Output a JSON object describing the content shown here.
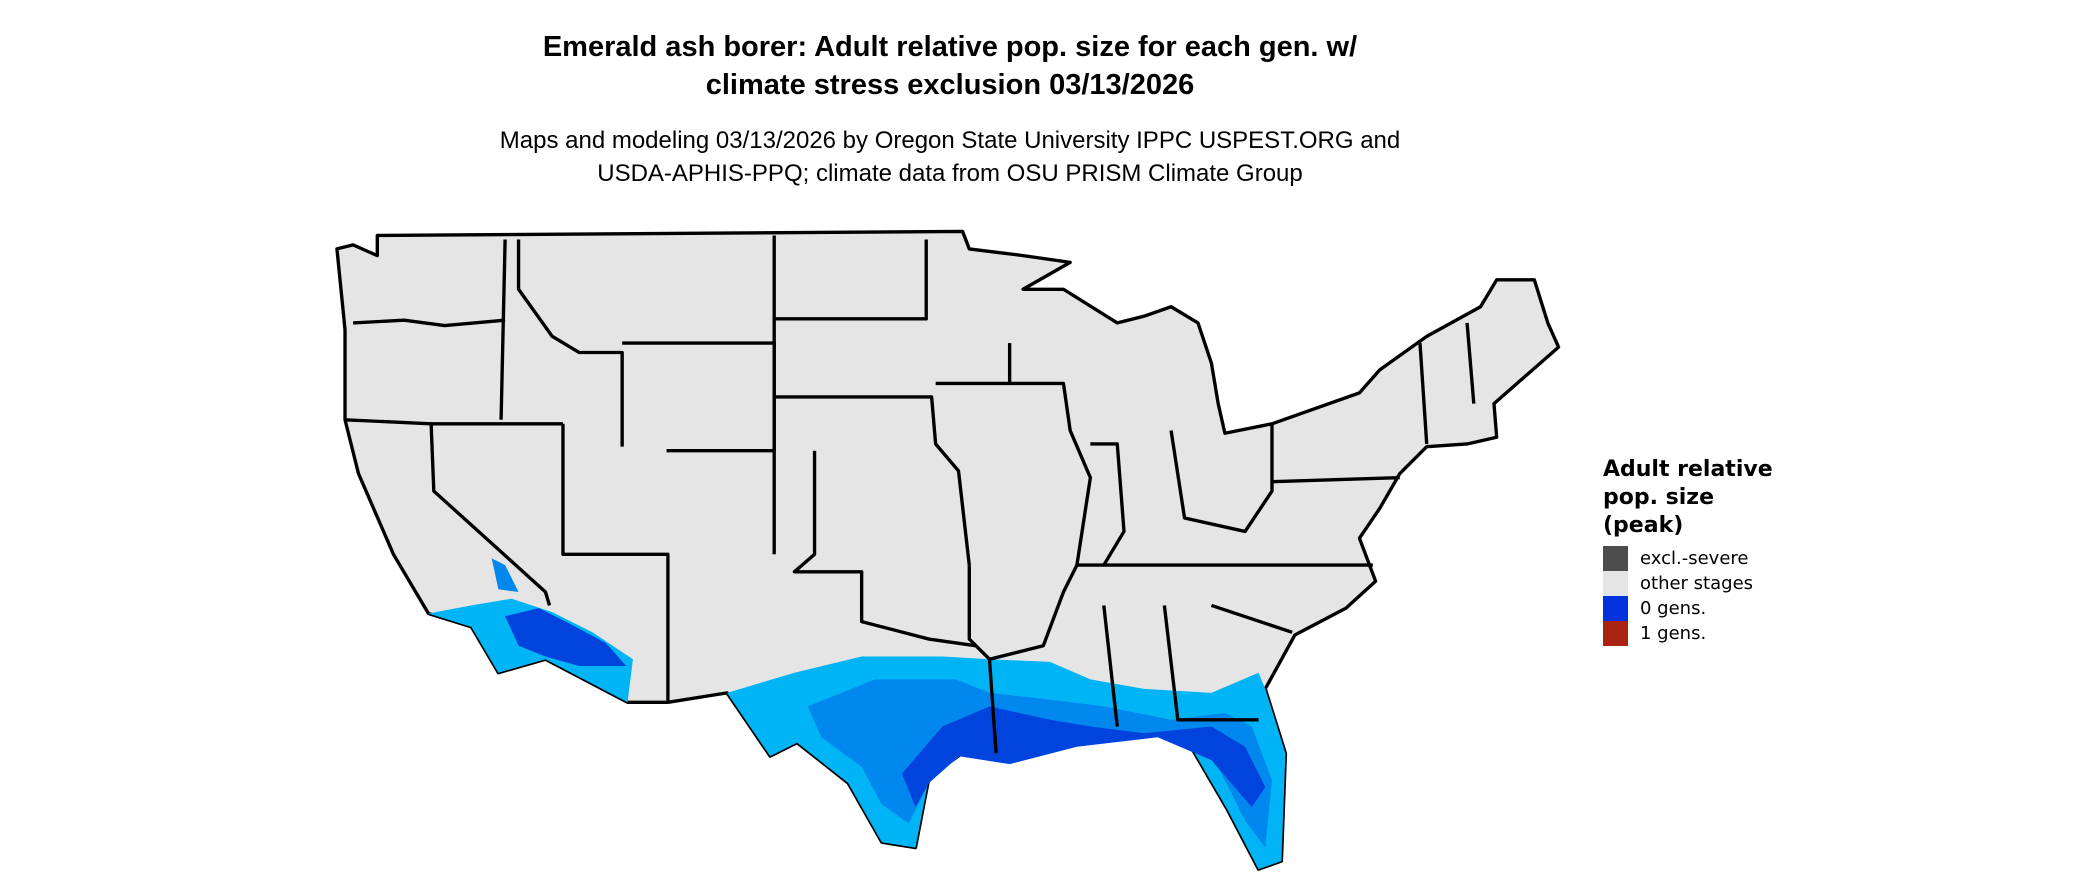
{
  "title_line1": "Emerald ash borer: Adult relative pop. size for each gen. w/",
  "title_line2": "climate stress exclusion 03/13/2026",
  "subtitle_line1": "Maps and modeling 03/13/2026 by Oregon State University IPPC USPEST.ORG and",
  "subtitle_line2": "USDA-APHIS-PPQ; climate data from OSU PRISM Climate Group",
  "legend": {
    "title_line1": "Adult relative",
    "title_line2": "pop. size",
    "title_line3": "(peak)",
    "items": [
      {
        "label": "excl.-severe",
        "color": "#4d4d4d"
      },
      {
        "label": "other stages",
        "color": "#e5e5e5"
      },
      {
        "label": "0 gens.",
        "color": "#0033dd"
      },
      {
        "label": "1 gens.",
        "color": "#aa2211"
      }
    ]
  },
  "map": {
    "land_color": "#e5e5e5",
    "border_color": "#000000",
    "zero_gen_shades": [
      "#00b4f5",
      "#0088ee",
      "#0044dd"
    ]
  }
}
